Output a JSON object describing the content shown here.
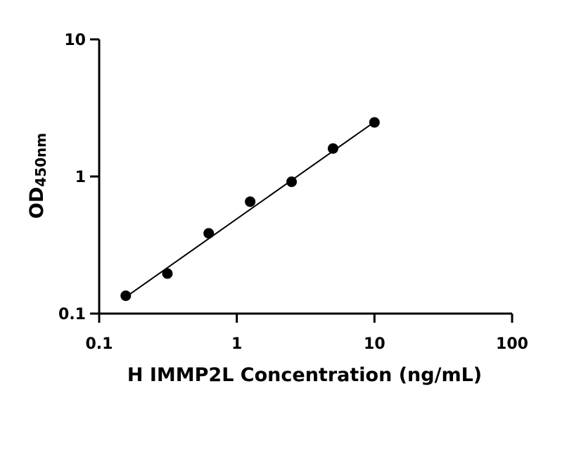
{
  "chart_data": {
    "type": "scatter",
    "title": "",
    "xlabel": "H IMMP2L Concentration (ng/mL)",
    "ylabel": "OD",
    "ylabel_sub": "450nm",
    "x_scale": "log",
    "y_scale": "log",
    "xlim": [
      0.1,
      100
    ],
    "ylim": [
      0.1,
      10
    ],
    "x_ticks": [
      0.1,
      1,
      10,
      100
    ],
    "x_tick_labels": [
      "0.1",
      "1",
      "10",
      "100"
    ],
    "y_ticks": [
      0.1,
      1,
      10
    ],
    "y_tick_labels": [
      "0.1",
      "1",
      "10"
    ],
    "grid": false,
    "series": [
      {
        "x": [
          0.156,
          0.313,
          0.625,
          1.25,
          2.5,
          5,
          10
        ],
        "y": [
          0.135,
          0.196,
          0.385,
          0.655,
          0.915,
          1.6,
          2.48
        ]
      }
    ],
    "fit_line": {
      "x": [
        0.156,
        10
      ],
      "y": [
        0.132,
        2.5
      ]
    }
  }
}
